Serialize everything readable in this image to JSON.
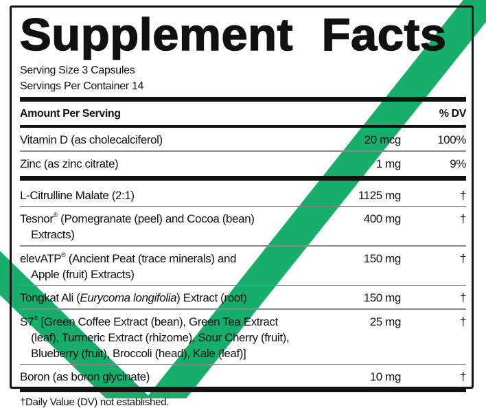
{
  "title": {
    "word1": "Supplement",
    "word2": "Facts"
  },
  "serving_size": "Serving Size 3 Capsules",
  "servings_per_container": "Servings Per Container 14",
  "header": {
    "amount": "Amount Per Serving",
    "dv": "% DV"
  },
  "vitamins": [
    {
      "name": "Vitamin D (as cholecalciferol)",
      "amount": "20 mcg",
      "dv": "100%"
    },
    {
      "name": "Zinc (as zinc citrate)",
      "amount": "1 mg",
      "dv": "9%"
    }
  ],
  "ingredients": [
    {
      "name": "L-Citrulline Malate (2:1)",
      "amount": "1125 mg",
      "dv": "†"
    },
    {
      "name": "Tesnor",
      "reg": "®",
      "rest": " (Pomegranate (peel) and Cocoa (bean)",
      "cont": "Extracts)",
      "amount": "400 mg",
      "dv": "†"
    },
    {
      "name": "elevATP",
      "reg": "®",
      "rest": " (Ancient Peat (trace minerals) and",
      "cont": "Apple (fruit) Extracts)",
      "amount": "150 mg",
      "dv": "†"
    },
    {
      "name": "Tongkat Ali (",
      "italic": "Eurycoma longifolia",
      "rest": ") Extract (root)",
      "amount": "150 mg",
      "dv": "†"
    },
    {
      "name": "S7",
      "reg": "®",
      "rest": " [Green Coffee Extract (bean), Green Tea Extract",
      "cont": "(leaf), Turmeric Extract (rhizome), Sour Cherry (fruit),",
      "cont2": "Blueberry (fruit), Broccoli (head), Kale (leaf)]",
      "amount": "25 mg",
      "dv": "†"
    },
    {
      "name": "Boron (as boron glycinate)",
      "amount": "10 mg",
      "dv": "†"
    }
  ],
  "footnote": "†Daily Value (DV) not established.",
  "colors": {
    "checkmark": "#17ad6b",
    "text": "#111111"
  },
  "icons": {
    "overlay": "checkmark-icon"
  }
}
